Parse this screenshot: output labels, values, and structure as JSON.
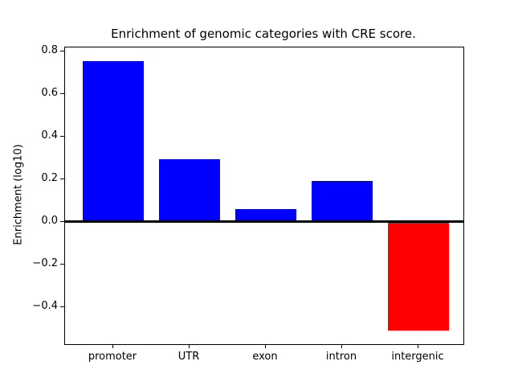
{
  "chart_data": {
    "type": "bar",
    "title": "Enrichment of genomic categories with CRE score.",
    "xlabel": "",
    "ylabel": "Enrichment (log10)",
    "categories": [
      "promoter",
      "UTR",
      "exon",
      "intron",
      "intergenic"
    ],
    "values": [
      0.755,
      0.295,
      0.06,
      0.19,
      -0.51
    ],
    "bar_colors": [
      "#0000ff",
      "#0000ff",
      "#0000ff",
      "#0000ff",
      "#ff0000"
    ],
    "positive_color": "#0000ff",
    "negative_color": "#ff0000",
    "ylim": [
      -0.574,
      0.818
    ],
    "yticks": [
      0.8,
      0.6,
      0.4,
      0.2,
      0.0,
      -0.2,
      -0.4
    ],
    "ytick_labels": [
      "0.8",
      "0.6",
      "0.4",
      "0.2",
      "0.0",
      "−0.2",
      "−0.4"
    ],
    "zero_line": true,
    "grid": false,
    "legend_position": "none",
    "frame_color": "#000000",
    "background_color": "#ffffff"
  }
}
